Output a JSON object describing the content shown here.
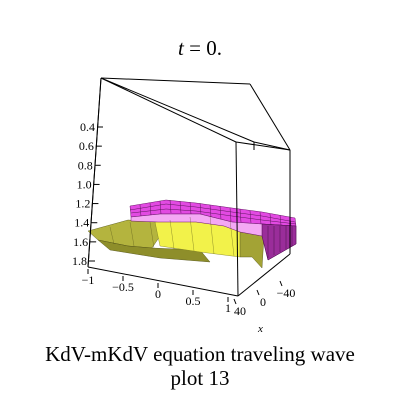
{
  "title": {
    "variable": "t",
    "rest": " = 0."
  },
  "caption": {
    "line1": "KdV-mKdV equation  traveling wave",
    "line2": "plot 13"
  },
  "chart_data": {
    "type": "surface3d",
    "z_ticks": [
      "0.4",
      "0.6",
      "0.8",
      "1.0",
      "1.2",
      "1.4",
      "1.6",
      "1.8"
    ],
    "t_ticks": [
      "−1",
      "−0.5",
      "0",
      "0.5",
      "1"
    ],
    "x_ticks": [
      "−40",
      "0",
      "40"
    ],
    "xlabel": "x",
    "zlim": [
      0.35,
      1.85
    ],
    "surface": {
      "upper_level_z": 1.0,
      "upper_level_z_range": [
        0.9,
        1.1
      ],
      "lower_level_z": 0.73,
      "region_boundary_x_approx": 0
    },
    "colors": {
      "upper_magenta": "#e24ae2",
      "upper_light": "#f4a8f4",
      "upper_wall": "#9a2d9a",
      "mid_yellow": "#f2f24a",
      "low_olive": "#8e8e2a",
      "low_olive_light": "#b4b43e",
      "grid": "#000000"
    }
  }
}
